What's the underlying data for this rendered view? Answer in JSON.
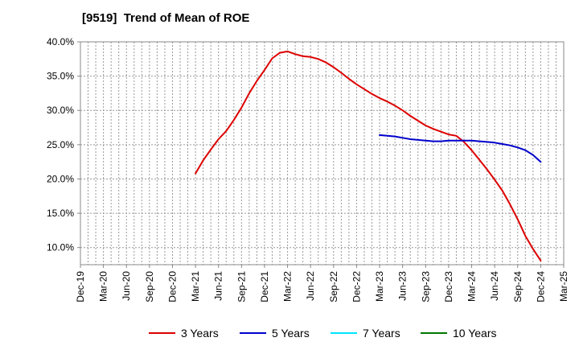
{
  "chart_data": {
    "type": "line",
    "title": "[9519]  Trend of Mean of ROE",
    "x_ticks": [
      "Dec-19",
      "Mar-20",
      "Jun-20",
      "Sep-20",
      "Dec-20",
      "Mar-21",
      "Jun-21",
      "Sep-21",
      "Dec-21",
      "Mar-22",
      "Jun-22",
      "Sep-22",
      "Dec-22",
      "Mar-23",
      "Jun-23",
      "Sep-23",
      "Dec-23",
      "Mar-24",
      "Jun-24",
      "Sep-24",
      "Dec-24",
      "Mar-25"
    ],
    "y_ticks": [
      "10.0%",
      "15.0%",
      "20.0%",
      "25.0%",
      "30.0%",
      "35.0%",
      "40.0%"
    ],
    "y_tick_values": [
      10,
      15,
      20,
      25,
      30,
      35,
      40
    ],
    "ylim": [
      7.5,
      40.0
    ],
    "grid": true,
    "legend_position": "bottom",
    "series": [
      {
        "name": "3 Years",
        "color": "#dd0000",
        "x": [
          "2021-03",
          "2021-04",
          "2021-05",
          "2021-06",
          "2021-07",
          "2021-08",
          "2021-09",
          "2021-10",
          "2021-11",
          "2021-12",
          "2022-01",
          "2022-02",
          "2022-03",
          "2022-04",
          "2022-05",
          "2022-06",
          "2022-07",
          "2022-08",
          "2022-09",
          "2022-10",
          "2022-11",
          "2022-12",
          "2023-01",
          "2023-02",
          "2023-03",
          "2023-04",
          "2023-05",
          "2023-06",
          "2023-07",
          "2023-08",
          "2023-09",
          "2023-10",
          "2023-11",
          "2023-12",
          "2024-01",
          "2024-02",
          "2024-03",
          "2024-04",
          "2024-05",
          "2024-06",
          "2024-07",
          "2024-08",
          "2024-09",
          "2024-10",
          "2024-11",
          "2024-12"
        ],
        "values": [
          20.8,
          22.7,
          24.3,
          25.8,
          27.0,
          28.6,
          30.4,
          32.5,
          34.3,
          35.9,
          37.6,
          38.4,
          38.6,
          38.2,
          37.9,
          37.8,
          37.5,
          37.0,
          36.3,
          35.5,
          34.6,
          33.8,
          33.1,
          32.4,
          31.8,
          31.3,
          30.7,
          30.0,
          29.2,
          28.5,
          27.8,
          27.3,
          26.9,
          26.5,
          26.3,
          25.4,
          24.2,
          22.8,
          21.4,
          19.9,
          18.3,
          16.3,
          14.1,
          11.7,
          9.8,
          8.1
        ]
      },
      {
        "name": "5 Years",
        "color": "#0000cc",
        "x": [
          "2023-03",
          "2023-04",
          "2023-05",
          "2023-06",
          "2023-07",
          "2023-08",
          "2023-09",
          "2023-10",
          "2023-11",
          "2023-12",
          "2024-01",
          "2024-02",
          "2024-03",
          "2024-04",
          "2024-05",
          "2024-06",
          "2024-07",
          "2024-08",
          "2024-09",
          "2024-10",
          "2024-11",
          "2024-12"
        ],
        "values": [
          26.4,
          26.3,
          26.2,
          26.0,
          25.8,
          25.7,
          25.6,
          25.5,
          25.5,
          25.6,
          25.6,
          25.6,
          25.6,
          25.5,
          25.4,
          25.3,
          25.1,
          24.9,
          24.6,
          24.2,
          23.5,
          22.5
        ]
      },
      {
        "name": "7 Years",
        "color": "#00e5ff",
        "x": [],
        "values": []
      },
      {
        "name": "10 Years",
        "color": "#007700",
        "x": [],
        "values": []
      }
    ]
  }
}
